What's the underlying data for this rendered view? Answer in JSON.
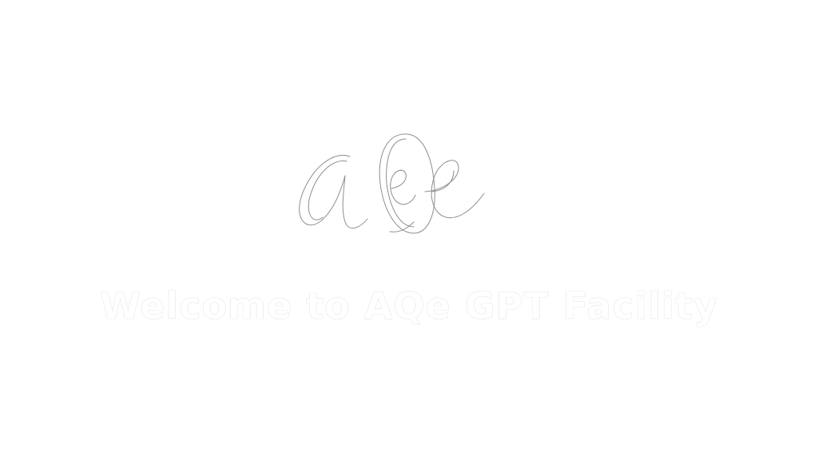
{
  "splash": {
    "logo_icon": "aqe-script-logo-icon",
    "welcome_text": "Welcome to AQe GPT Facility",
    "text_color": "#ffffff",
    "background_color": "#ffffff"
  }
}
